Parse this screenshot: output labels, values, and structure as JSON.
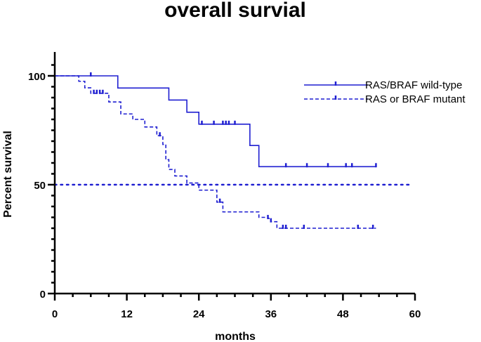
{
  "chart_data": {
    "type": "line",
    "subtype": "kaplan-meier-step",
    "title": "overall survial",
    "xlabel": "months",
    "ylabel": "Percent survival",
    "xlim": [
      0,
      60
    ],
    "ylim": [
      0,
      100
    ],
    "xticks": [
      0,
      12,
      24,
      36,
      48,
      60
    ],
    "yticks": [
      0,
      50,
      100
    ],
    "grid": false,
    "legend_position": "top-right",
    "reference_line": {
      "y": 50,
      "style": "dotted",
      "color": "#1f1fd1"
    },
    "series": [
      {
        "name": "RAS/BRAF wild-type",
        "color": "#1f1fd1",
        "line_style": "solid",
        "steps": [
          [
            0,
            100
          ],
          [
            10.5,
            94.4
          ],
          [
            19,
            88.9
          ],
          [
            22,
            83.3
          ],
          [
            24,
            77.8
          ],
          [
            32.5,
            68
          ],
          [
            34,
            58.3
          ],
          [
            53.5,
            58.3
          ]
        ],
        "censored": [
          6,
          24.5,
          26.5,
          28,
          28.5,
          29,
          30,
          38.5,
          42,
          45.5,
          48.5,
          49.5,
          53.5
        ]
      },
      {
        "name": "RAS or BRAF mutant",
        "color": "#1f1fd1",
        "line_style": "dashed",
        "steps": [
          [
            0,
            100
          ],
          [
            4,
            97.5
          ],
          [
            5,
            94.5
          ],
          [
            6,
            92
          ],
          [
            9,
            88
          ],
          [
            11,
            82.5
          ],
          [
            12,
            82.5
          ],
          [
            13,
            80
          ],
          [
            15,
            76.5
          ],
          [
            17,
            72.5
          ],
          [
            18,
            68.5
          ],
          [
            18.5,
            61.5
          ],
          [
            19,
            57
          ],
          [
            20,
            54
          ],
          [
            22,
            50.8
          ],
          [
            24,
            47.5
          ],
          [
            27,
            42
          ],
          [
            28,
            37.5
          ],
          [
            34,
            35
          ],
          [
            35.5,
            34.5
          ],
          [
            36,
            33
          ],
          [
            37,
            30
          ],
          [
            53.5,
            30
          ]
        ],
        "censored": [
          6.5,
          7,
          7.5,
          8,
          17.5,
          27.5,
          35.5,
          36,
          38,
          38.5,
          41.5,
          50.5,
          53
        ]
      }
    ]
  }
}
